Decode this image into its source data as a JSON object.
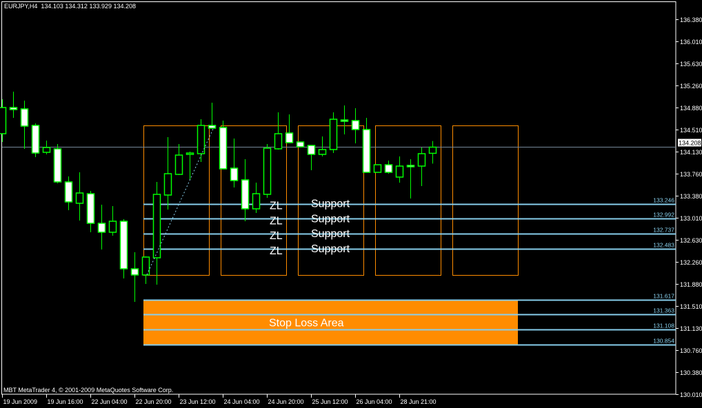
{
  "header": {
    "symbol": "EURJPY,H4",
    "ohlc": "134.103 134.312 133.929 134.208"
  },
  "footer": {
    "copyright": "MBT MetaTrader 4, © 2001-2009 MetaQuotes Software Corp."
  },
  "colors": {
    "background": "#000000",
    "candle": "#00ff00",
    "bear_fill": "#ffffff",
    "bull_fill": "#000000",
    "rectangle": "#ff8c00",
    "level_line": "#87ceeb",
    "bid_line": "#778899",
    "stop_area": "#ff8c00",
    "axis": "#ffffff"
  },
  "chart_data": {
    "type": "candlestick",
    "title": "EURJPY,H4",
    "ylim": [
      130.01,
      136.38
    ],
    "y_ticks": [
      "136.380",
      "136.010",
      "135.630",
      "135.260",
      "134.880",
      "134.510",
      "134.130",
      "133.760",
      "133.380",
      "133.010",
      "132.630",
      "132.260",
      "131.880",
      "131.510",
      "131.130",
      "130.760",
      "130.380",
      "130.010"
    ],
    "x_ticks": [
      {
        "bar": 0,
        "label": "19 Jun 2009"
      },
      {
        "bar": 4,
        "label": "19 Jun 16:00"
      },
      {
        "bar": 8,
        "label": "22 Jun 04:00"
      },
      {
        "bar": 12,
        "label": "22 Jun 20:00"
      },
      {
        "bar": 16,
        "label": "23 Jun 12:00"
      },
      {
        "bar": 20,
        "label": "24 Jun 04:00"
      },
      {
        "bar": 24,
        "label": "24 Jun 20:00"
      },
      {
        "bar": 28,
        "label": "25 Jun 12:00"
      },
      {
        "bar": 32,
        "label": "26 Jun 04:00"
      },
      {
        "bar": 36,
        "label": "28 Jun 21:00"
      }
    ],
    "candles": [
      [
        134.436,
        135.022,
        134.296,
        134.881
      ],
      [
        134.881,
        135.151,
        134.706,
        134.846
      ],
      [
        134.858,
        134.998,
        134.179,
        134.565
      ],
      [
        134.577,
        134.612,
        134.038,
        134.108
      ],
      [
        134.12,
        134.319,
        134.085,
        134.202
      ],
      [
        134.179,
        134.261,
        133.593,
        133.617
      ],
      [
        133.617,
        133.71,
        133.136,
        133.277
      ],
      [
        133.254,
        133.78,
        132.961,
        133.429
      ],
      [
        133.417,
        133.464,
        132.762,
        132.914
      ],
      [
        132.914,
        133.23,
        132.469,
        132.762
      ],
      [
        132.762,
        133.207,
        132.703,
        132.949
      ],
      [
        132.949,
        132.984,
        131.977,
        132.141
      ],
      [
        132.141,
        132.422,
        131.579,
        132.036
      ],
      [
        132.036,
        132.352,
        131.883,
        132.34
      ],
      [
        132.328,
        133.617,
        131.872,
        133.406
      ],
      [
        133.394,
        134.378,
        133.148,
        133.757
      ],
      [
        133.745,
        134.261,
        133.734,
        134.073
      ],
      [
        134.085,
        134.132,
        133.652,
        134.108
      ],
      [
        134.097,
        134.682,
        133.956,
        134.577
      ],
      [
        134.577,
        134.963,
        134.53,
        134.53
      ],
      [
        134.542,
        134.659,
        133.839,
        133.839
      ],
      [
        133.851,
        134.354,
        133.523,
        133.64
      ],
      [
        133.652,
        134.003,
        132.949,
        133.16
      ],
      [
        133.16,
        133.605,
        133.09,
        133.417
      ],
      [
        133.406,
        134.261,
        133.347,
        134.19
      ],
      [
        134.179,
        134.799,
        134.167,
        134.436
      ],
      [
        134.448,
        134.764,
        134.284,
        134.284
      ],
      [
        134.296,
        134.296,
        134.214,
        134.214
      ],
      [
        134.237,
        134.237,
        133.816,
        134.085
      ],
      [
        134.085,
        134.389,
        134.05,
        134.167
      ],
      [
        134.167,
        134.799,
        134.108,
        134.682
      ],
      [
        134.67,
        134.916,
        134.425,
        134.659
      ],
      [
        134.659,
        134.87,
        134.272,
        134.507
      ],
      [
        134.507,
        134.706,
        133.78,
        133.78
      ],
      [
        133.78,
        133.909,
        133.78,
        133.909
      ],
      [
        133.909,
        133.98,
        133.757,
        133.78
      ],
      [
        133.699,
        134.05,
        133.605,
        133.886
      ],
      [
        133.898,
        134.003,
        133.336,
        133.874
      ],
      [
        133.886,
        134.202,
        133.546,
        134.097
      ],
      [
        134.103,
        134.312,
        133.929,
        134.208
      ]
    ],
    "bid": "134.208",
    "rectangles": [
      {
        "from_bar": 13,
        "to_bar": 19,
        "top": 134.577,
        "bottom": 132.036
      },
      {
        "from_bar": 20,
        "to_bar": 26,
        "top": 134.577,
        "bottom": 132.036
      },
      {
        "from_bar": 27,
        "to_bar": 33,
        "top": 134.577,
        "bottom": 132.036
      },
      {
        "from_bar": 34,
        "to_bar": 40,
        "top": 134.577,
        "bottom": 132.036
      },
      {
        "from_bar": 41,
        "to_bar": 47,
        "top": 134.577,
        "bottom": 132.036
      }
    ],
    "trendline": {
      "from": {
        "bar": 13,
        "price": 132.04
      },
      "to": {
        "bar": 19,
        "price": 134.57
      }
    },
    "support_levels": [
      {
        "price": 133.246,
        "label": "133.246",
        "left": "ZL",
        "right": "Support"
      },
      {
        "price": 132.992,
        "label": "132.992",
        "left": "ZL",
        "right": "Support"
      },
      {
        "price": 132.737,
        "label": "132.737",
        "left": "ZL",
        "right": "Support"
      },
      {
        "price": 132.483,
        "label": "132.483",
        "left": "ZL",
        "right": "Support"
      }
    ],
    "stop_area": {
      "top": 131.617,
      "bottom": 130.854,
      "from_bar": 13,
      "to_bar": 47,
      "text": "Stop Loss Area"
    },
    "stop_levels": [
      {
        "price": 131.617,
        "label": "131.617"
      },
      {
        "price": 131.363,
        "label": "131.363"
      },
      {
        "price": 131.108,
        "label": "131.108"
      },
      {
        "price": 130.854,
        "label": "130.854"
      }
    ]
  }
}
